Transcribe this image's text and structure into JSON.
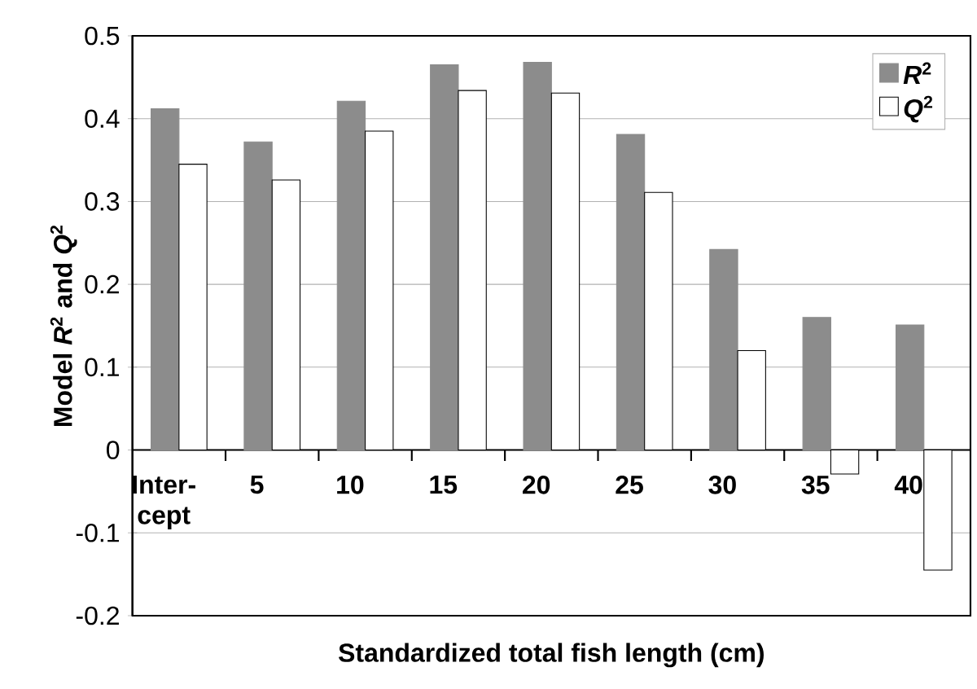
{
  "chart_data": {
    "type": "bar",
    "xlabel": "Standardized total fish length (cm)",
    "ylabel": "Model *R*$^{2}$ and *Q*$^{2}$",
    "categories": [
      "Inter-cept",
      "5",
      "10",
      "15",
      "20",
      "25",
      "30",
      "35",
      "40"
    ],
    "series": [
      {
        "name": "*R*$^{2}$",
        "color": "#8c8c8c",
        "values": [
          0.412,
          0.372,
          0.421,
          0.465,
          0.468,
          0.381,
          0.242,
          0.16,
          0.151
        ]
      },
      {
        "name": "*Q*$^{2}$",
        "color": "#ffffff",
        "values": [
          0.345,
          0.326,
          0.385,
          0.434,
          0.431,
          0.311,
          0.12,
          -0.029,
          -0.145
        ]
      }
    ],
    "ylim": [
      -0.2,
      0.5
    ],
    "yticks": [
      -0.2,
      -0.1,
      0,
      0.1,
      0.2,
      0.3,
      0.4,
      0.5
    ],
    "grid": "y",
    "legend": "top right"
  }
}
